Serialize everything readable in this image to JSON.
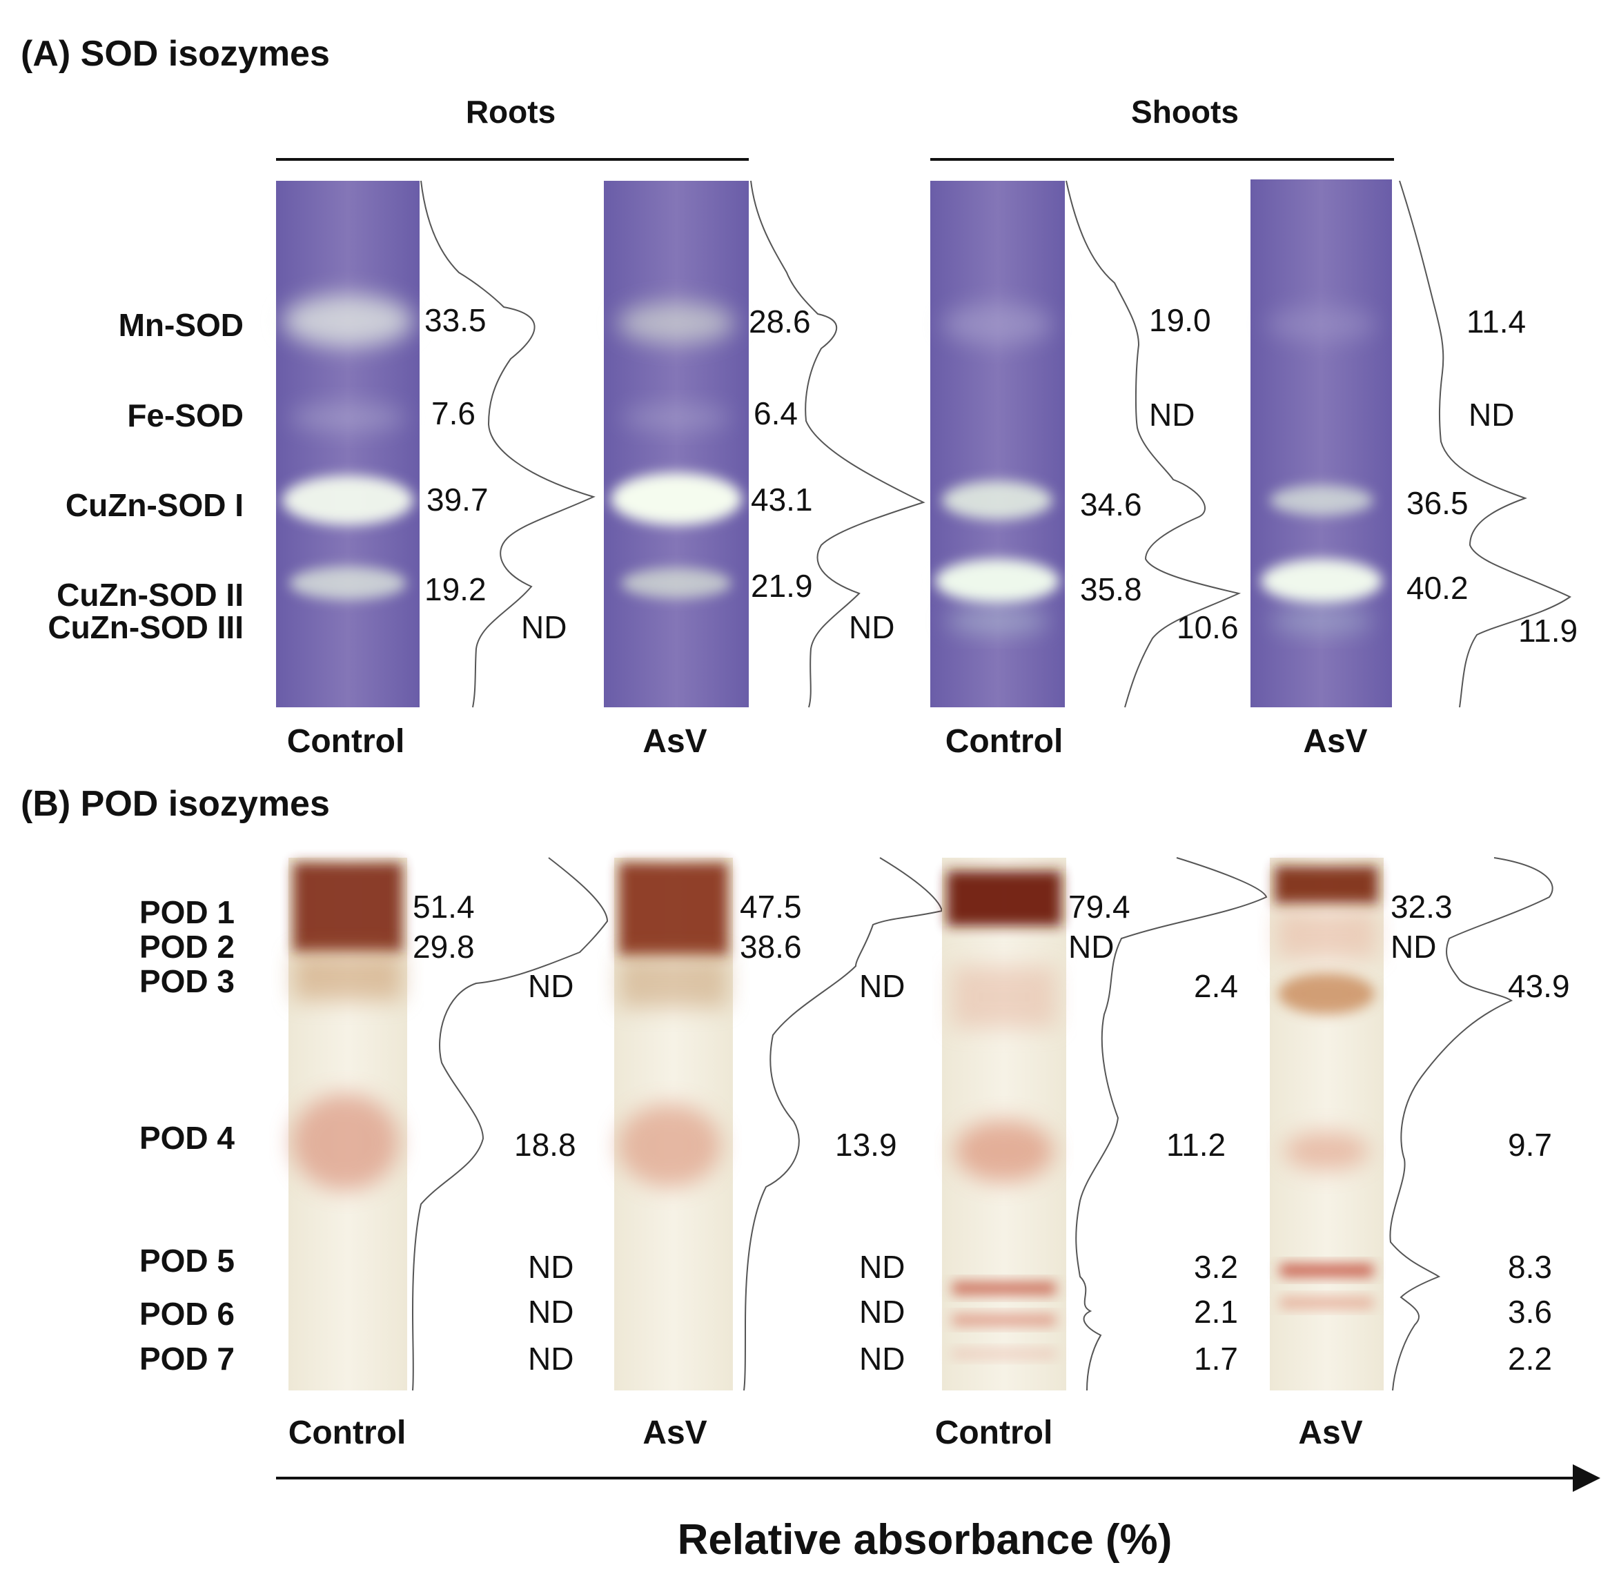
{
  "panel_a": {
    "title": "(A) SOD isozymes",
    "groups": [
      "Roots",
      "Shoots"
    ],
    "band_labels": [
      "Mn-SOD",
      "Fe-SOD",
      "CuZn-SOD I",
      "CuZn-SOD II",
      "CuZn-SOD III"
    ],
    "lanes": [
      {
        "label": "Control",
        "group": "Roots",
        "values": [
          "33.5",
          "7.6",
          "39.7",
          "19.2",
          "ND"
        ]
      },
      {
        "label": "AsV",
        "group": "Roots",
        "values": [
          "28.6",
          "6.4",
          "43.1",
          "21.9",
          "ND"
        ]
      },
      {
        "label": "Control",
        "group": "Shoots",
        "values": [
          "19.0",
          "ND",
          "34.6",
          "35.8",
          "10.6"
        ]
      },
      {
        "label": "AsV",
        "group": "Shoots",
        "values": [
          "11.4",
          "ND",
          "36.5",
          "40.2",
          "11.9"
        ]
      }
    ]
  },
  "panel_b": {
    "title": "(B) POD isozymes",
    "band_labels": [
      "POD 1",
      "POD 2",
      "POD 3",
      "POD 4",
      "POD 5",
      "POD 6",
      "POD 7"
    ],
    "lanes": [
      {
        "label": "Control",
        "values": [
          "51.4",
          "29.8",
          "ND",
          "18.8",
          "ND",
          "ND",
          "ND"
        ]
      },
      {
        "label": "AsV",
        "values": [
          "47.5",
          "38.6",
          "ND",
          "13.9",
          "ND",
          "ND",
          "ND"
        ]
      },
      {
        "label": "Control",
        "values": [
          "79.4",
          "ND",
          "2.4",
          "11.2",
          "3.2",
          "2.1",
          "1.7"
        ]
      },
      {
        "label": "AsV",
        "values": [
          "32.3",
          "ND",
          "43.9",
          "9.7",
          "8.3",
          "3.6",
          "2.2"
        ]
      }
    ]
  },
  "x_axis": {
    "title": "Relative absorbance (%)"
  },
  "colors": {
    "sod_gel": "#6f62ad",
    "sod_band": "#eef6ea",
    "pod_gel": "#f3eedf",
    "pod_band_dark": "#7a2510",
    "pod_band_light": "#d98f7a"
  }
}
